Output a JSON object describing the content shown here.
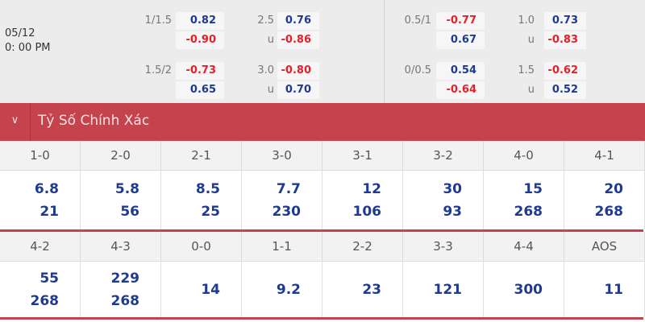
{
  "match": {
    "date": "05/12",
    "time": "0: 00 PM"
  },
  "odds_left": [
    {
      "hcap": "1/1.5",
      "h1": "0.82",
      "h2": "-0.90",
      "ou": "2.5",
      "o1": "0.76",
      "ou2": "u",
      "o2": "-0.86"
    },
    {
      "hcap": "1.5/2",
      "h1": "-0.73",
      "h2": "0.65",
      "ou": "3.0",
      "o1": "-0.80",
      "ou2": "u",
      "o2": "0.70"
    }
  ],
  "odds_right": [
    {
      "hcap": "0.5/1",
      "h1": "-0.77",
      "h2": "0.67",
      "ou": "1.0",
      "o1": "0.73",
      "ou2": "u",
      "o2": "-0.83"
    },
    {
      "hcap": "0/0.5",
      "h1": "0.54",
      "h2": "-0.64",
      "ou": "1.5",
      "o1": "-0.62",
      "ou2": "u",
      "o2": "0.52"
    }
  ],
  "section": {
    "title": "Tỷ Số Chính Xác",
    "icon": "chevron-down-icon"
  },
  "scores_row1": [
    {
      "score": "1-0",
      "v": [
        "6.8",
        "21"
      ]
    },
    {
      "score": "2-0",
      "v": [
        "5.8",
        "56"
      ]
    },
    {
      "score": "2-1",
      "v": [
        "8.5",
        "25"
      ]
    },
    {
      "score": "3-0",
      "v": [
        "7.7",
        "230"
      ]
    },
    {
      "score": "3-1",
      "v": [
        "12",
        "106"
      ]
    },
    {
      "score": "3-2",
      "v": [
        "30",
        "93"
      ]
    },
    {
      "score": "4-0",
      "v": [
        "15",
        "268"
      ]
    },
    {
      "score": "4-1",
      "v": [
        "20",
        "268"
      ]
    }
  ],
  "scores_row2": [
    {
      "score": "4-2",
      "v": [
        "55",
        "268"
      ]
    },
    {
      "score": "4-3",
      "v": [
        "229",
        "268"
      ]
    },
    {
      "score": "0-0",
      "v": [
        "14"
      ]
    },
    {
      "score": "1-1",
      "v": [
        "9.2"
      ]
    },
    {
      "score": "2-2",
      "v": [
        "23"
      ]
    },
    {
      "score": "3-3",
      "v": [
        "121"
      ]
    },
    {
      "score": "4-4",
      "v": [
        "300"
      ]
    },
    {
      "score": "AOS",
      "v": [
        "11"
      ]
    }
  ],
  "colors": {
    "positive": "#1f3a8f",
    "negative": "#e5202a",
    "header": "#c5434c"
  }
}
